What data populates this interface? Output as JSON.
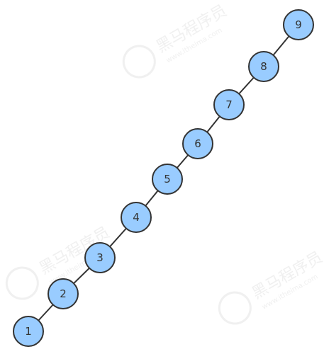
{
  "diagram": {
    "type": "tree",
    "nodes": [
      {
        "id": "n1",
        "label": "1"
      },
      {
        "id": "n2",
        "label": "2"
      },
      {
        "id": "n3",
        "label": "3"
      },
      {
        "id": "n4",
        "label": "4"
      },
      {
        "id": "n5",
        "label": "5"
      },
      {
        "id": "n6",
        "label": "6"
      },
      {
        "id": "n7",
        "label": "7"
      },
      {
        "id": "n8",
        "label": "8"
      },
      {
        "id": "n9",
        "label": "9"
      }
    ],
    "edges": [
      {
        "from": "n1",
        "to": "n2"
      },
      {
        "from": "n2",
        "to": "n3"
      },
      {
        "from": "n3",
        "to": "n4"
      },
      {
        "from": "n4",
        "to": "n5"
      },
      {
        "from": "n5",
        "to": "n6"
      },
      {
        "from": "n6",
        "to": "n7"
      },
      {
        "from": "n7",
        "to": "n8"
      },
      {
        "from": "n8",
        "to": "n9"
      }
    ],
    "colors": {
      "node_fill": "#99ccff",
      "node_stroke": "#333333",
      "edge": "#333333",
      "watermark": "#e6e6e6"
    }
  },
  "watermark": {
    "text_cn": "黑马程序员",
    "text_url": "www.itheima.com"
  }
}
